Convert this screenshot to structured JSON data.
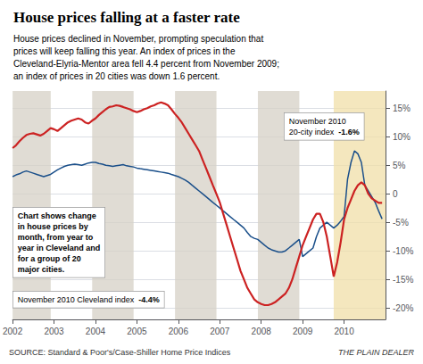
{
  "chart_data": {
    "type": "line",
    "title": "House prices falling at a faster rate",
    "subtitle": "House prices declined in November, prompting speculation that\nprices will keep falling this year. An index of prices in the\nCleveland-Elyria-Mentor area fell 4.4 percent from November 2009;\nan index of prices in 20 cities was down 1.6 percent.",
    "source": "SOURCE: Standard & Poor's/Case-Shiller Home Price Indices",
    "credit": "THE PLAIN DEALER",
    "annotations": [
      "November 2010\n20-city index  -1.6%",
      "November 2010 Cleveland index  -4.4%",
      "Chart shows change\nin house prices by\nmonth, from year to\nyear in Cleveland and\nfor a group of 20\nmajor cities."
    ],
    "xlim": [
      2002.0,
      2011.0
    ],
    "xticks": [
      2002,
      2003,
      2004,
      2005,
      2006,
      2007,
      2008,
      2009,
      2010
    ],
    "ylim": [
      -22,
      18
    ],
    "yticks": [
      {
        "value": -20,
        "label": "-20%"
      },
      {
        "value": -15,
        "label": "-15%"
      },
      {
        "value": -10,
        "label": "-10%"
      },
      {
        "value": -5,
        "label": "-5%"
      },
      0,
      {
        "value": 5,
        "label": "5%"
      },
      {
        "value": 10,
        "label": "10%"
      },
      {
        "value": 15,
        "label": "15%"
      }
    ],
    "grid": true,
    "bands": {
      "ranges": [
        [
          2002.0,
          2002.92
        ],
        [
          2003.92,
          2004.92
        ],
        [
          2005.92,
          2006.92
        ],
        [
          2007.92,
          2008.92
        ]
      ],
      "color": "#d6d0c5"
    },
    "highlight_band": {
      "range": [
        2009.75,
        2011.0
      ],
      "color": "#f0dfa8"
    },
    "x": [
      2002.0,
      2002.083,
      2002.167,
      2002.25,
      2002.333,
      2002.417,
      2002.5,
      2002.583,
      2002.667,
      2002.75,
      2002.833,
      2002.917,
      2003.0,
      2003.083,
      2003.167,
      2003.25,
      2003.333,
      2003.417,
      2003.5,
      2003.583,
      2003.667,
      2003.75,
      2003.833,
      2003.917,
      2004.0,
      2004.083,
      2004.167,
      2004.25,
      2004.333,
      2004.417,
      2004.5,
      2004.583,
      2004.667,
      2004.75,
      2004.833,
      2004.917,
      2005.0,
      2005.083,
      2005.167,
      2005.25,
      2005.333,
      2005.417,
      2005.5,
      2005.583,
      2005.667,
      2005.75,
      2005.833,
      2005.917,
      2006.0,
      2006.083,
      2006.167,
      2006.25,
      2006.333,
      2006.417,
      2006.5,
      2006.583,
      2006.667,
      2006.75,
      2006.833,
      2006.917,
      2007.0,
      2007.083,
      2007.167,
      2007.25,
      2007.333,
      2007.417,
      2007.5,
      2007.583,
      2007.667,
      2007.75,
      2007.833,
      2007.917,
      2008.0,
      2008.083,
      2008.167,
      2008.25,
      2008.333,
      2008.417,
      2008.5,
      2008.583,
      2008.667,
      2008.75,
      2008.833,
      2008.917,
      2009.0,
      2009.083,
      2009.167,
      2009.25,
      2009.333,
      2009.417,
      2009.5,
      2009.583,
      2009.667,
      2009.75,
      2009.833,
      2009.917,
      2010.0,
      2010.083,
      2010.167,
      2010.25,
      2010.333,
      2010.417,
      2010.5,
      2010.583,
      2010.667,
      2010.75,
      2010.833,
      2010.917
    ],
    "series": [
      {
        "color": "#1a4f8a",
        "values": [
          3.0,
          3.3,
          3.5,
          3.8,
          4.0,
          3.8,
          3.6,
          3.4,
          3.2,
          3.0,
          3.2,
          3.4,
          3.8,
          4.2,
          4.5,
          4.8,
          5.0,
          5.1,
          5.2,
          5.1,
          5.0,
          5.2,
          5.4,
          5.5,
          5.5,
          5.3,
          5.2,
          5.0,
          4.9,
          4.8,
          4.9,
          5.0,
          5.1,
          4.9,
          4.8,
          4.7,
          4.5,
          4.4,
          4.3,
          4.2,
          4.1,
          4.0,
          3.9,
          3.8,
          3.7,
          3.6,
          3.4,
          3.2,
          3.0,
          2.7,
          2.4,
          2.0,
          1.5,
          1.0,
          0.5,
          0.0,
          -0.5,
          -1.0,
          -1.5,
          -2.0,
          -2.5,
          -3.0,
          -3.5,
          -4.0,
          -4.5,
          -5.0,
          -5.5,
          -6.0,
          -6.8,
          -7.5,
          -7.8,
          -8.0,
          -8.5,
          -9.0,
          -9.5,
          -9.8,
          -10.0,
          -10.2,
          -10.2,
          -10.0,
          -9.5,
          -9.0,
          -8.5,
          -8.0,
          -11.0,
          -10.5,
          -10.0,
          -9.5,
          -7.5,
          -6.0,
          -5.5,
          -5.0,
          -5.5,
          -6.0,
          -5.5,
          -4.8,
          -4.0,
          2.5,
          5.5,
          7.5,
          7.0,
          5.5,
          1.5,
          0.5,
          -0.5,
          -1.5,
          -3.0,
          -4.4
        ]
      },
      {
        "color": "#cc2222",
        "values": [
          8.0,
          8.5,
          9.2,
          9.8,
          10.3,
          10.5,
          10.6,
          10.4,
          10.2,
          10.5,
          11.0,
          11.5,
          11.3,
          11.0,
          11.5,
          12.0,
          12.5,
          12.8,
          13.0,
          13.2,
          13.0,
          12.5,
          12.3,
          12.8,
          13.2,
          13.8,
          14.3,
          14.8,
          15.2,
          15.3,
          15.5,
          15.4,
          15.2,
          15.0,
          14.8,
          14.5,
          14.3,
          14.5,
          14.8,
          15.0,
          15.3,
          15.5,
          15.8,
          16.0,
          15.8,
          15.5,
          14.8,
          14.0,
          13.3,
          12.5,
          11.5,
          10.5,
          9.5,
          8.5,
          7.5,
          6.0,
          4.5,
          3.0,
          1.5,
          0.0,
          -1.5,
          -3.5,
          -5.5,
          -7.5,
          -9.5,
          -11.5,
          -13.5,
          -15.0,
          -16.5,
          -17.5,
          -18.5,
          -19.0,
          -19.3,
          -19.5,
          -19.5,
          -19.3,
          -19.0,
          -18.5,
          -18.0,
          -17.5,
          -16.5,
          -15.0,
          -13.0,
          -11.0,
          -9.0,
          -7.5,
          -6.0,
          -4.5,
          -3.5,
          -3.5,
          -5.0,
          -7.5,
          -11.0,
          -14.5,
          -12.0,
          -8.5,
          -4.5,
          -2.5,
          -1.0,
          0.5,
          1.5,
          2.0,
          1.5,
          0.0,
          -0.8,
          -1.2,
          -1.6,
          -1.6
        ]
      }
    ]
  }
}
